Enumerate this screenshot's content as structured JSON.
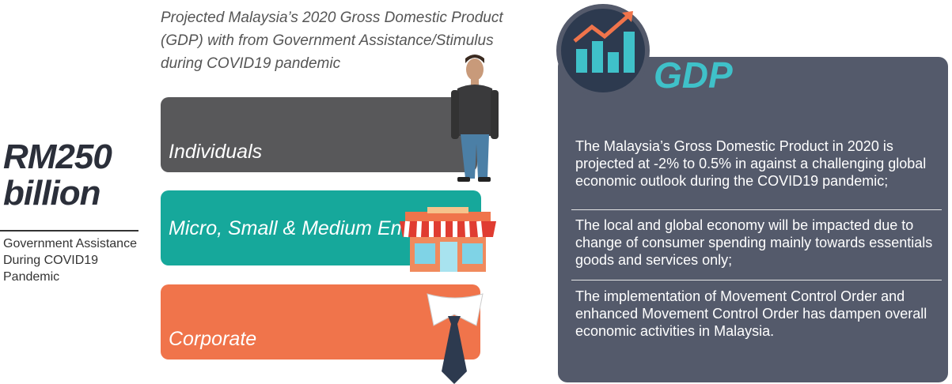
{
  "left": {
    "amount": "RM250 billion",
    "description": "Government Assistance During COVID19 Pandemic"
  },
  "middle": {
    "title": "Projected Malaysia’s 2020 Gross Domestic Product (GDP) with from Government Assistance/Stimulus during COVID19 pandemic",
    "bars": [
      "Individuals",
      "Micro, Small & Medium Enterprises",
      "Corporate"
    ]
  },
  "panel": {
    "title": "GDP",
    "paragraphs": [
      "The Malaysia’s Gross Domestic Product in 2020 is projected at -2% to 0.5% in against a challenging global economic outlook during the COVID19 pandemic;",
      "The local and global economy will be impacted due to change of consumer spending mainly towards essentials goods and services only;",
      "The implementation of Movement Control Order and enhanced Movement Control Order has dampen overall economic activities in Malaysia."
    ]
  }
}
